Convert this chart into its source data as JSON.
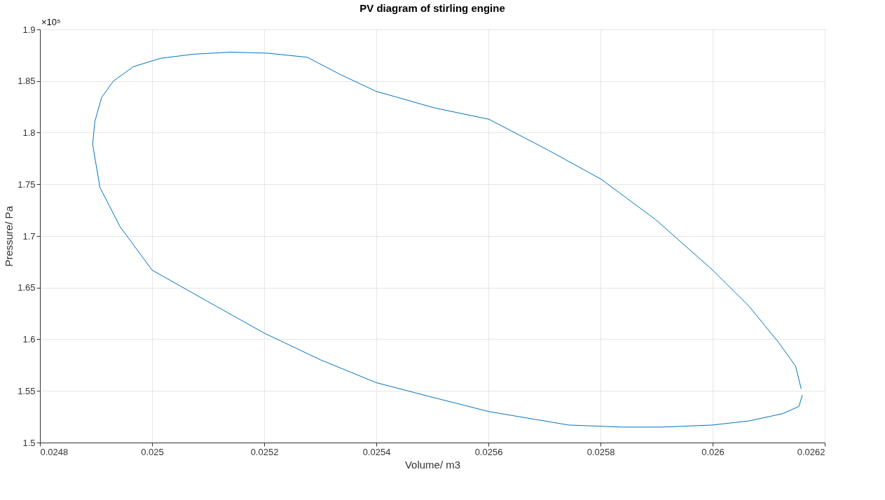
{
  "chart_data": {
    "type": "line",
    "title": "PV diagram of stirling engine",
    "xlabel": "Volume/ m3",
    "ylabel": "Pressure/ Pa",
    "annotations": [
      "×10⁵"
    ],
    "series": [
      {
        "color": "#0072bd",
        "x": [
          0.02616,
          0.026154,
          0.026125,
          0.026065,
          0.026,
          0.02591,
          0.025838,
          0.025743,
          0.025601,
          0.025492,
          0.0254,
          0.025301,
          0.0252,
          0.025098,
          0.025,
          0.024943,
          0.024907,
          0.024894,
          0.024898,
          0.02491,
          0.024931,
          0.024967,
          0.025015,
          0.025074,
          0.02514,
          0.025206,
          0.025277,
          0.025337,
          0.0254,
          0.025504,
          0.025601,
          0.025707,
          0.025801,
          0.025898,
          0.026,
          0.026065,
          0.026119,
          0.026148,
          0.026158
        ],
        "values": [
          1.546,
          1.535,
          1.528,
          1.521,
          1.517,
          1.515,
          1.515,
          1.517,
          1.53,
          1.545,
          1.558,
          1.58,
          1.606,
          1.637,
          1.667,
          1.709,
          1.747,
          1.789,
          1.811,
          1.834,
          1.85,
          1.864,
          1.872,
          1.876,
          1.878,
          1.877,
          1.873,
          1.856,
          1.84,
          1.824,
          1.813,
          1.783,
          1.755,
          1.716,
          1.667,
          1.632,
          1.596,
          1.574,
          1.552
        ]
      }
    ],
    "xlim": [
      0.0248,
      0.0262
    ],
    "xticks": [
      0.0248,
      0.025,
      0.0252,
      0.0254,
      0.0256,
      0.0258,
      0.026,
      0.0262
    ],
    "ylim": [
      1.5,
      1.9
    ],
    "yticks": [
      1.5,
      1.55,
      1.6,
      1.65,
      1.7,
      1.75,
      1.8,
      1.85,
      1.9
    ],
    "grid": true,
    "marker": "none",
    "line_style": "solid"
  }
}
